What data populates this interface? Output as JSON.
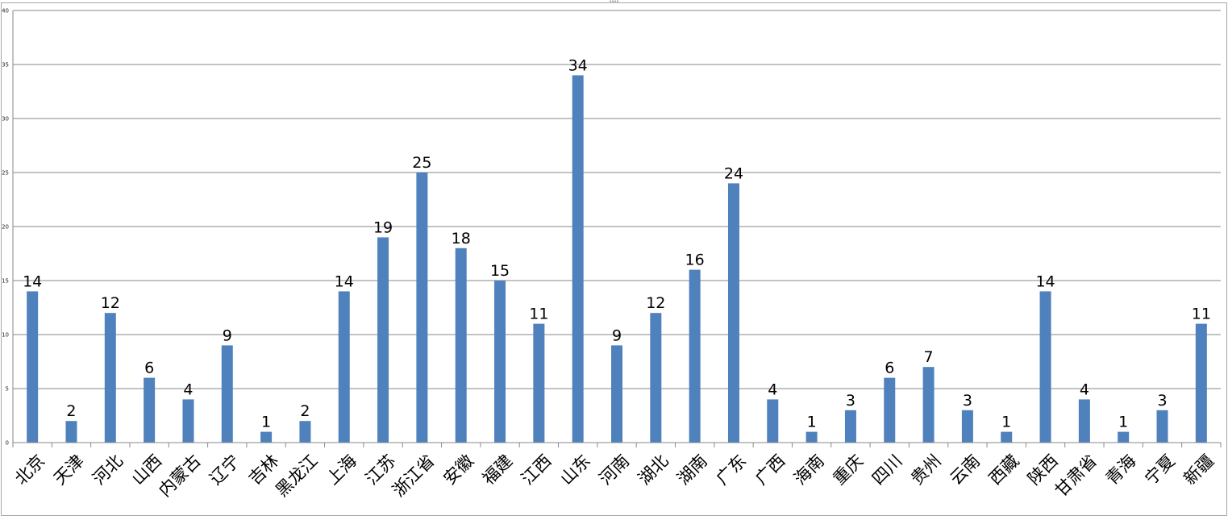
{
  "chart_data": {
    "type": "bar",
    "categories": [
      "北京",
      "天津",
      "河北",
      "山西",
      "内蒙古",
      "辽宁",
      "吉林",
      "黑龙江",
      "上海",
      "江苏",
      "浙江省",
      "安徽",
      "福建",
      "江西",
      "山东",
      "河南",
      "湖北",
      "湖南",
      "广东",
      "广西",
      "海南",
      "重庆",
      "四川",
      "贵州",
      "云南",
      "西藏",
      "陕西",
      "甘肃省",
      "青海",
      "宁夏",
      "新疆"
    ],
    "values": [
      14,
      2,
      12,
      6,
      4,
      9,
      1,
      2,
      14,
      19,
      25,
      18,
      15,
      11,
      34,
      9,
      12,
      16,
      24,
      4,
      1,
      3,
      6,
      7,
      3,
      1,
      14,
      4,
      1,
      3,
      11
    ],
    "ylim": [
      0,
      40
    ],
    "yticks": [
      0,
      5,
      10,
      15,
      20,
      25,
      30,
      35,
      40
    ],
    "grid": true,
    "legend": "none",
    "bar_color": "#4f81bd",
    "grid_color": "#878787",
    "frame_color": "#a6a6a6"
  }
}
